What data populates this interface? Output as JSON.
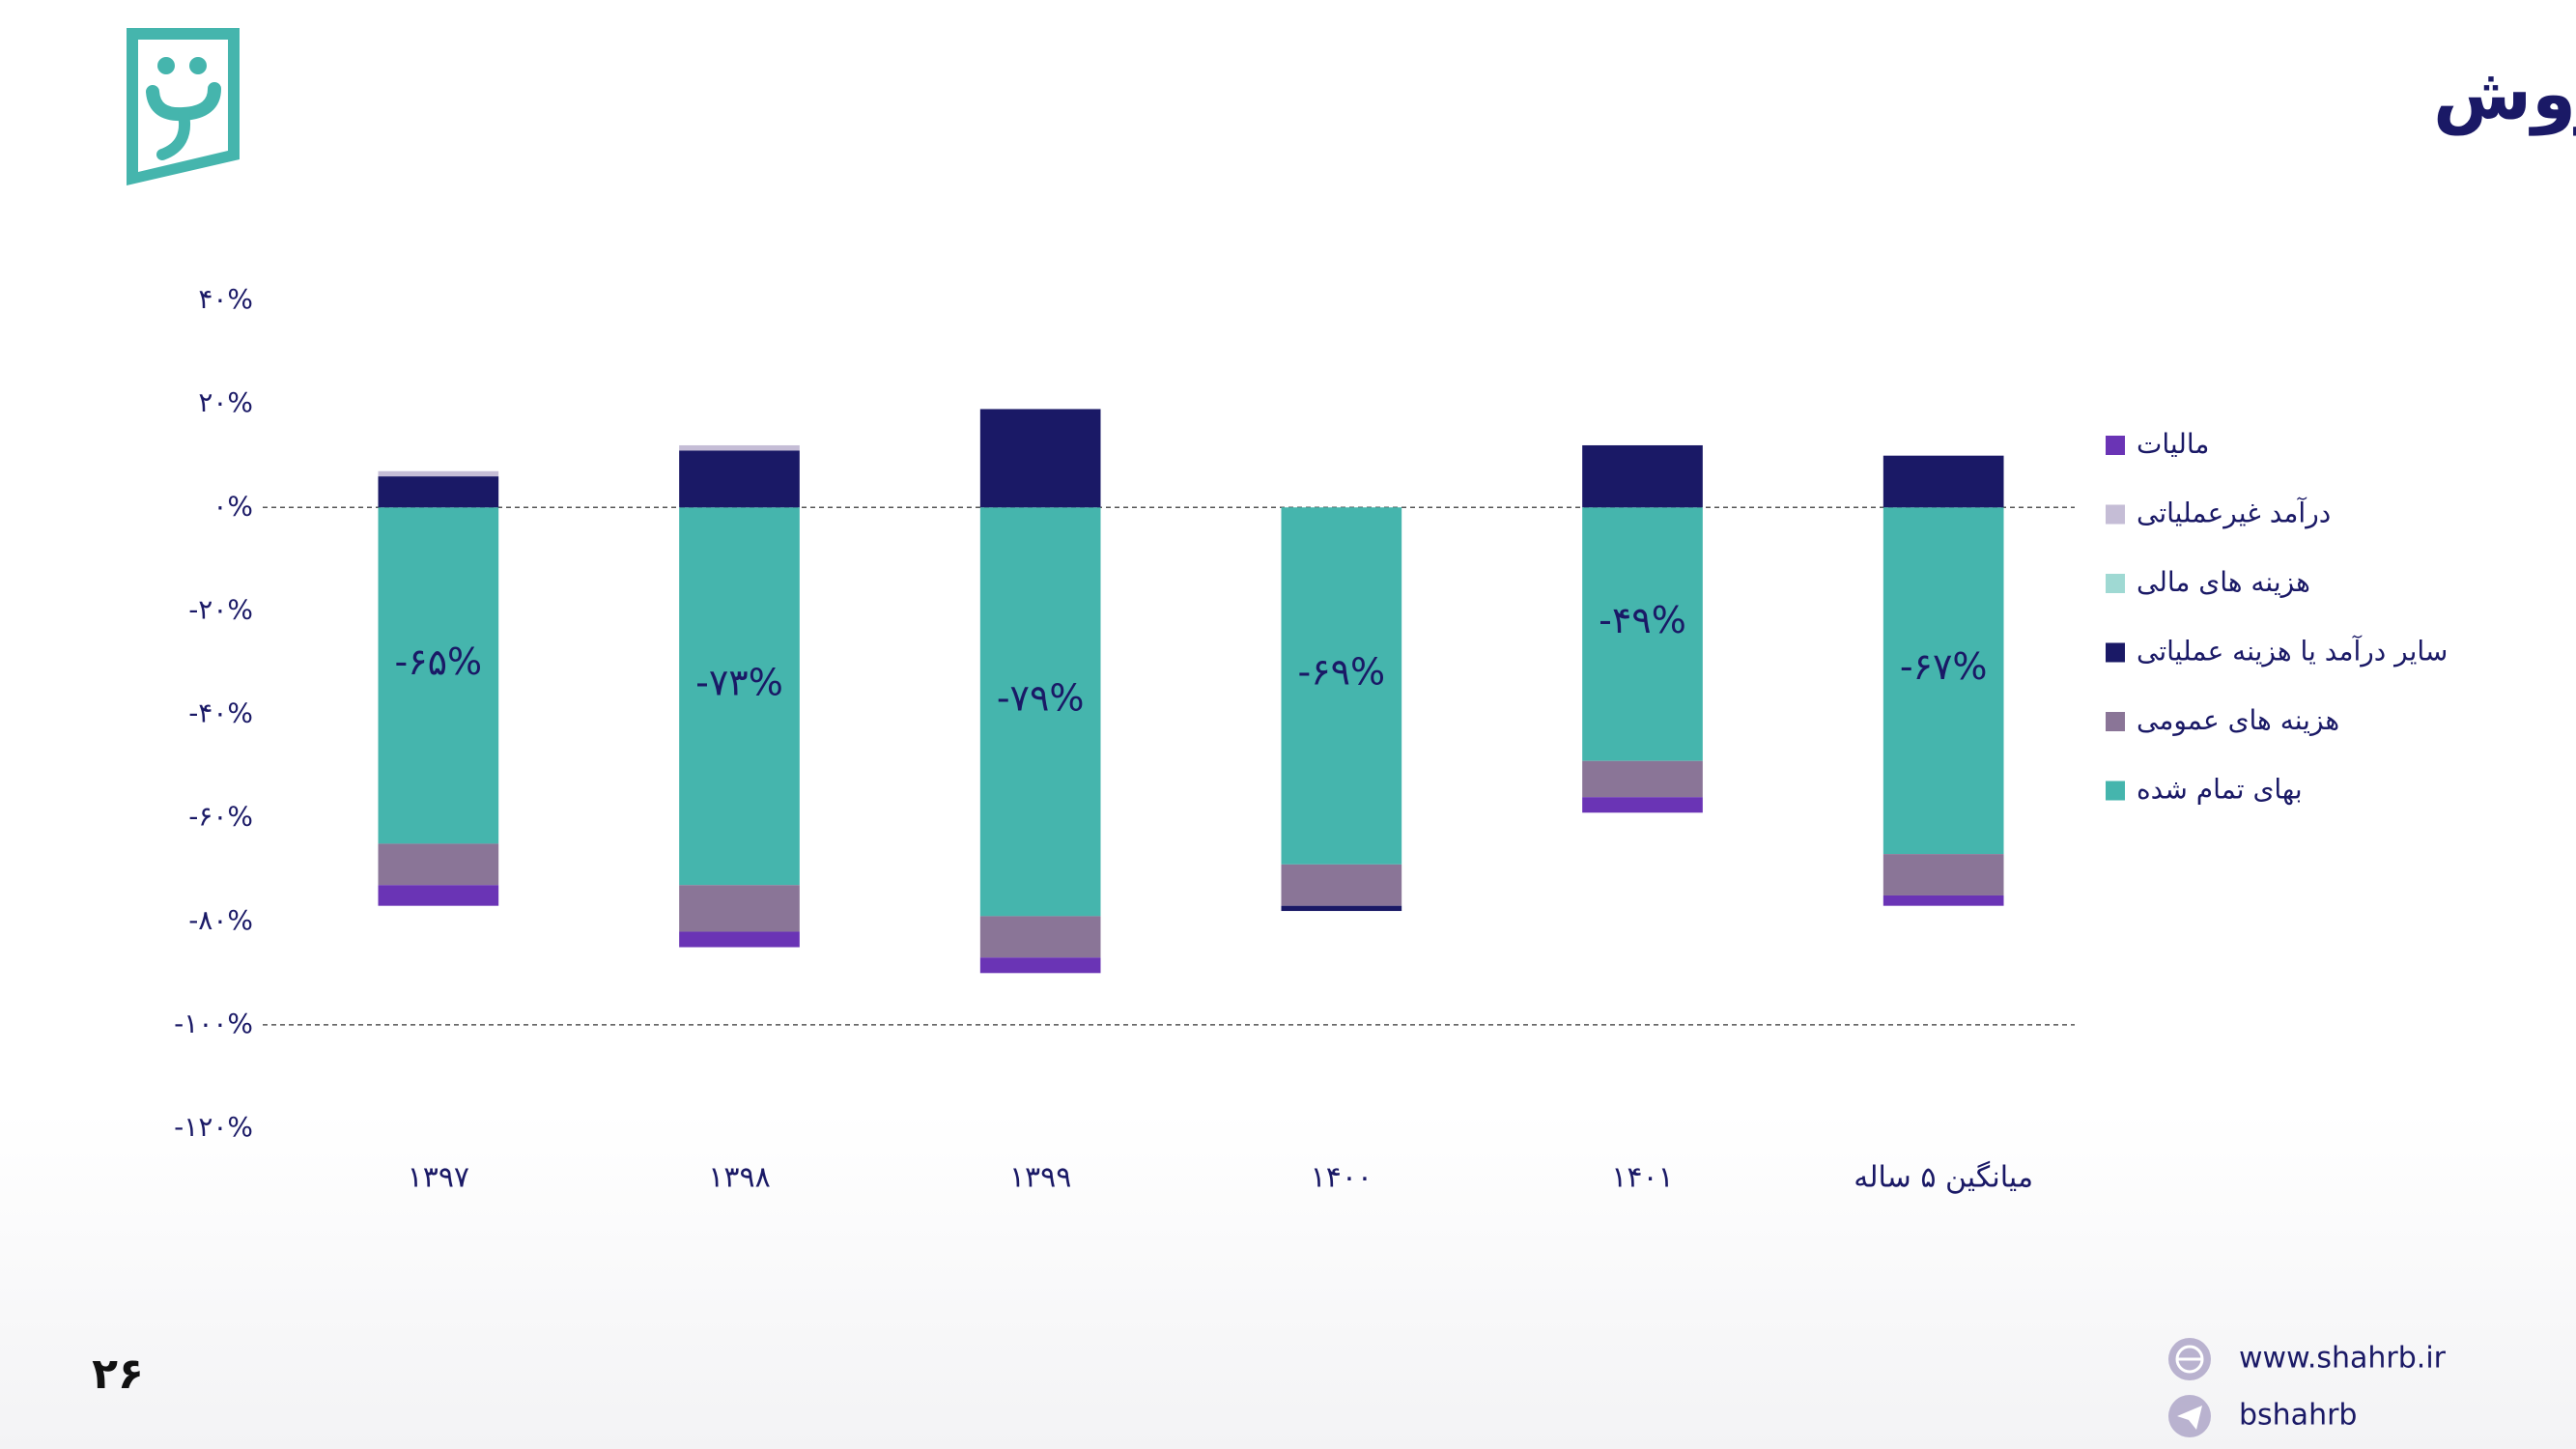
{
  "header": {
    "title": "اقلام صورت سود و زیان بر اساس درصدی از فروش"
  },
  "footer": {
    "page_number": "۲۶",
    "website": "www.shahrb.ir",
    "telegram": "bshahrb"
  },
  "chart_data": {
    "type": "stacked_bar",
    "categories": [
      "۱۳۹۷",
      "۱۳۹۸",
      "۱۳۹۹",
      "۱۴۰۰",
      "۱۴۰۱",
      "میانگین ۵ ساله"
    ],
    "series": [
      {
        "name": "بهای تمام شده",
        "color": "#45b5ad",
        "values": [
          -65,
          -73,
          -79,
          -69,
          -49,
          -67
        ],
        "value_labels": [
          "-۶۵%",
          "-۷۳%",
          "-۷۹%",
          "-۶۹%",
          "-۴۹%",
          "-۶۷%"
        ]
      },
      {
        "name": "هزینه های عمومی",
        "color": "#8a7597",
        "values": [
          -8,
          -9,
          -8,
          -8,
          -7,
          -8
        ]
      },
      {
        "name": "سایر درآمد یا هزینه عملیاتی",
        "color": "#1a1966",
        "values": [
          6,
          11,
          19,
          -1,
          12,
          10
        ]
      },
      {
        "name": "هزینه های مالی",
        "color": "#9fd9d3",
        "values": [
          0,
          0,
          0,
          0,
          0,
          0
        ]
      },
      {
        "name": "درآمد غیرعملیاتی",
        "color": "#c5bdd6",
        "values": [
          1,
          1,
          0,
          0,
          0,
          0
        ]
      },
      {
        "name": "مالیات",
        "color": "#6a34b5",
        "values": [
          -4,
          -3,
          -3,
          0,
          -3,
          -2
        ]
      }
    ],
    "ylim": [
      -120,
      40
    ],
    "yticks": [
      {
        "value": 40,
        "label": "۴۰%"
      },
      {
        "value": 20,
        "label": "۲۰%"
      },
      {
        "value": 0,
        "label": "۰%"
      },
      {
        "value": -20,
        "label": "-۲۰%"
      },
      {
        "value": -40,
        "label": "-۴۰%"
      },
      {
        "value": -60,
        "label": "-۶۰%"
      },
      {
        "value": -80,
        "label": "-۸۰%"
      },
      {
        "value": -100,
        "label": "-۱۰۰%"
      },
      {
        "value": -120,
        "label": "-۱۲۰%"
      }
    ],
    "reference_lines": [
      0,
      -100
    ],
    "legend": "right"
  }
}
